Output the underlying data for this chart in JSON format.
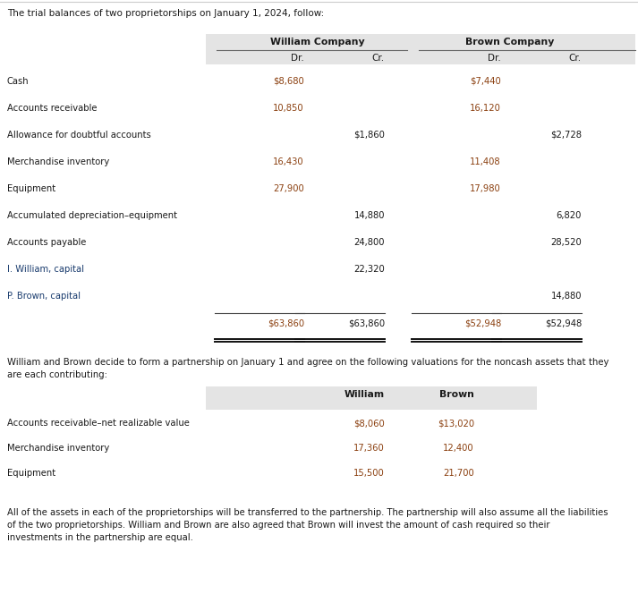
{
  "title": "The trial balances of two proprietorships on January 1, 2024, follow:",
  "rows": [
    [
      "Cash",
      "$8,680",
      "",
      "$7,440",
      ""
    ],
    [
      "Accounts receivable",
      "10,850",
      "",
      "16,120",
      ""
    ],
    [
      "Allowance for doubtful accounts",
      "",
      "$1,860",
      "",
      "$2,728"
    ],
    [
      "Merchandise inventory",
      "16,430",
      "",
      "11,408",
      ""
    ],
    [
      "Equipment",
      "27,900",
      "",
      "17,980",
      ""
    ],
    [
      "Accumulated depreciation–equipment",
      "",
      "14,880",
      "",
      "6,820"
    ],
    [
      "Accounts payable",
      "",
      "24,800",
      "",
      "28,520"
    ],
    [
      "I. William, capital",
      "",
      "22,320",
      "",
      ""
    ],
    [
      "P. Brown, capital",
      "",
      "",
      "",
      "14,880"
    ]
  ],
  "total_row": [
    "",
    "$63,860",
    "$63,860",
    "$52,948",
    "$52,948"
  ],
  "section2_title_line1": "William and Brown decide to form a partnership on January 1 and agree on the following valuations for the noncash assets that they",
  "section2_title_line2": "are each contributing:",
  "table2_rows": [
    [
      "Accounts receivable–net realizable value",
      "$8,060",
      "$13,020"
    ],
    [
      "Merchandise inventory",
      "17,360",
      "12,400"
    ],
    [
      "Equipment",
      "15,500",
      "21,700"
    ]
  ],
  "footer_lines": [
    "All of the assets in each of the proprietorships will be transferred to the partnership. The partnership will also assume all the liabilities",
    "of the two proprietorships. William and Brown are also agreed that Brown will invest the amount of cash required so their",
    "investments in the partnership are equal."
  ],
  "bg_color": "#ffffff",
  "header_bg": "#e4e4e4",
  "text_dark": "#1a1a1a",
  "text_blue": "#1a3c6e",
  "text_brown": "#8b4010",
  "text_navy": "#1a3c6e",
  "line_color": "#444444",
  "line_color2": "#111111"
}
